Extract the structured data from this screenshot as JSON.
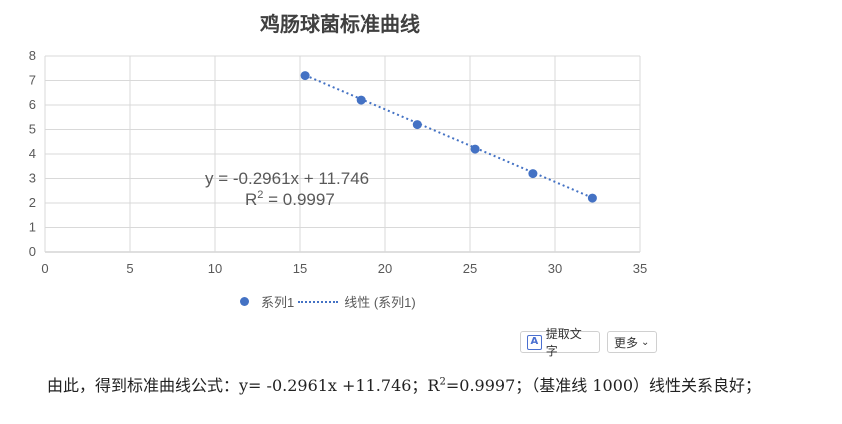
{
  "chart_data": {
    "type": "scatter",
    "title": "鸡肠球菌标准曲线",
    "xlim": [
      0,
      35
    ],
    "ylim": [
      0,
      8
    ],
    "x_ticks": [
      "0",
      "5",
      "10",
      "15",
      "20",
      "25",
      "30",
      "35"
    ],
    "y_ticks": [
      "0",
      "1",
      "2",
      "3",
      "4",
      "5",
      "6",
      "7",
      "8"
    ],
    "grid": true,
    "series": [
      {
        "name": "系列1",
        "color": "#4472c4",
        "points": [
          [
            15.3,
            7.2
          ],
          [
            18.6,
            6.2
          ],
          [
            21.9,
            5.2
          ],
          [
            25.3,
            4.2
          ],
          [
            28.7,
            3.2
          ],
          [
            32.2,
            2.2
          ]
        ]
      }
    ],
    "trendline": {
      "name": "线性 (系列1)",
      "slope": -0.2961,
      "intercept": 11.746,
      "x_range": [
        15.3,
        32.2
      ],
      "equation_label": "y = -0.2961x + 11.746",
      "r2_prefix": "R",
      "r2_sup": "2",
      "r2_value": " = 0.9997"
    },
    "legend": {
      "position": "bottom",
      "series_label": "系列1",
      "trend_label": "线性 (系列1)"
    }
  },
  "toolbar": {
    "extract_icon_glyph": "A",
    "extract_label": "提取文字",
    "more_label": "更多",
    "more_chevron": "⌄"
  },
  "conclusion": {
    "text_a": "由此，得到标准曲线公式：y= -0.2961x +11.746；R",
    "sup": "2",
    "text_b": "=0.9997；（基准线 1000）线性关系良好；"
  }
}
